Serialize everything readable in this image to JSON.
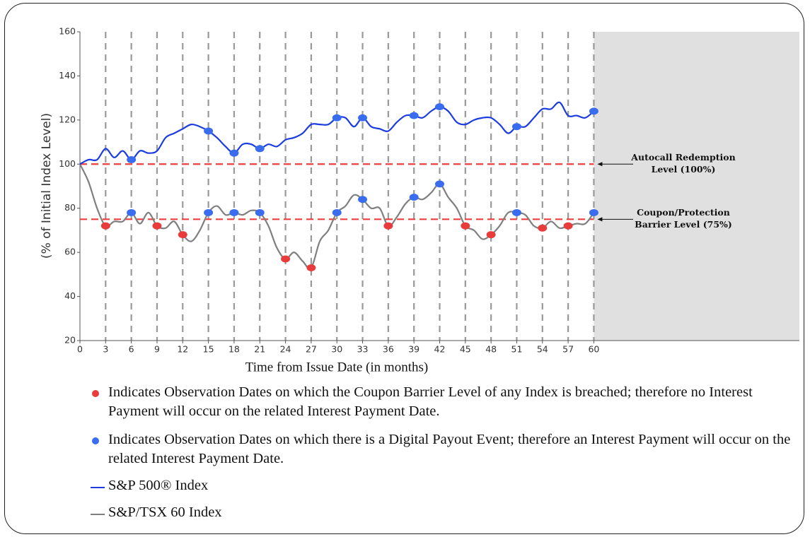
{
  "chart_data": {
    "type": "line",
    "xlabel": "Time from Issue Date (in months)",
    "ylabel": "(% of Initial Index Level)",
    "x": [
      0,
      1,
      2,
      3,
      4,
      5,
      6,
      7,
      8,
      9,
      10,
      11,
      12,
      13,
      14,
      15,
      16,
      17,
      18,
      19,
      20,
      21,
      22,
      23,
      24,
      25,
      26,
      27,
      28,
      29,
      30,
      31,
      32,
      33,
      34,
      35,
      36,
      37,
      38,
      39,
      40,
      41,
      42,
      43,
      44,
      45,
      46,
      47,
      48,
      49,
      50,
      51,
      52,
      53,
      54,
      55,
      56,
      57,
      58,
      59,
      60
    ],
    "xlim": [
      0,
      84
    ],
    "xticks": [
      0,
      3,
      6,
      9,
      12,
      15,
      18,
      21,
      24,
      27,
      30,
      33,
      36,
      39,
      42,
      45,
      48,
      51,
      54,
      57,
      60
    ],
    "ylim": [
      20,
      160
    ],
    "yticks": [
      20,
      40,
      60,
      80,
      100,
      120,
      140,
      160
    ],
    "shaded_from": 60,
    "series": [
      {
        "name": "S&P 500® Index",
        "color": "#1c3ce0",
        "values": [
          100,
          102,
          102,
          107,
          103,
          106,
          102,
          106,
          105,
          106,
          112,
          114,
          116,
          118,
          117,
          115,
          112,
          108,
          105,
          109,
          109,
          107,
          109,
          108,
          111,
          112,
          114,
          118,
          118,
          118,
          121,
          121,
          117,
          121,
          117,
          116,
          115,
          119,
          122,
          122,
          121,
          124,
          126,
          124,
          119,
          118,
          120,
          121,
          121,
          118,
          114,
          117,
          117,
          121,
          125,
          125,
          128,
          122,
          122,
          121,
          124
        ],
        "marker_x": [
          6,
          15,
          18,
          21,
          30,
          33,
          39,
          42,
          51,
          60
        ],
        "marker_colors": [
          "#3a6cf0",
          "#3a6cf0",
          "#3a6cf0",
          "#3a6cf0",
          "#3a6cf0",
          "#3a6cf0",
          "#3a6cf0",
          "#3a6cf0",
          "#3a6cf0",
          "#3a6cf0"
        ]
      },
      {
        "name": "S&P/TSX 60 Index",
        "color": "#7f7f7f",
        "values": [
          100,
          92,
          80,
          72,
          74,
          74,
          78,
          73,
          78,
          72,
          71,
          74,
          68,
          65,
          70,
          78,
          81,
          77,
          78,
          77,
          79,
          78,
          72,
          62,
          57,
          60,
          56,
          53,
          65,
          70,
          78,
          81,
          86,
          84,
          80,
          80,
          72,
          76,
          82,
          85,
          84,
          87,
          91,
          85,
          80,
          72,
          70,
          66,
          68,
          72,
          78,
          78,
          77,
          72,
          71,
          74,
          71,
          72,
          73,
          73,
          78
        ],
        "marker_x": [
          3,
          6,
          9,
          12,
          15,
          18,
          21,
          24,
          27,
          30,
          33,
          36,
          39,
          42,
          45,
          48,
          51,
          54,
          57,
          60
        ],
        "marker_colors": [
          "#e83c3c",
          "#3a6cf0",
          "#e83c3c",
          "#e83c3c",
          "#3a6cf0",
          "#3a6cf0",
          "#3a6cf0",
          "#e83c3c",
          "#e83c3c",
          "#3a6cf0",
          "#3a6cf0",
          "#e83c3c",
          "#3a6cf0",
          "#3a6cf0",
          "#e83c3c",
          "#e83c3c",
          "#3a6cf0",
          "#e83c3c",
          "#e83c3c",
          "#3a6cf0"
        ]
      }
    ],
    "reference_lines": [
      {
        "value": 100,
        "color": "#f03c3c",
        "label": [
          "Autocall Redemption",
          "Level (100%)"
        ]
      },
      {
        "value": 75,
        "color": "#f03c3c",
        "label": [
          "Coupon/Protection",
          "Barrier Level (75%)"
        ]
      }
    ],
    "notes": [
      {
        "color": "#e83c3c",
        "text": "Indicates Observation Dates on which the Coupon Barrier Level of any Index is breached; therefore no Interest Payment will occur on the related Interest Payment Date."
      },
      {
        "color": "#3a6cf0",
        "text": "Indicates Observation Dates on which there is a Digital Payout Event; therefore an Interest Payment will occur on the related Interest Payment Date."
      }
    ]
  }
}
